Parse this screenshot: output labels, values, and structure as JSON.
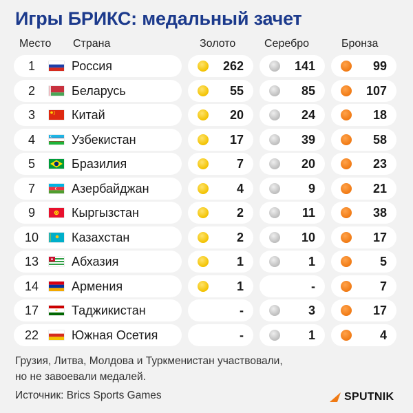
{
  "title": "Игры БРИКС: медальный зачет",
  "headers": {
    "place": "Место",
    "country": "Страна",
    "gold": "Золото",
    "silver": "Серебро",
    "bronze": "Бронза"
  },
  "rows": [
    {
      "place": "1",
      "country": "Россия",
      "gold": "262",
      "silver": "141",
      "bronze": "99",
      "flag": "russia-flag-icon"
    },
    {
      "place": "2",
      "country": "Беларусь",
      "gold": "55",
      "silver": "85",
      "bronze": "107",
      "flag": "belarus-flag-icon"
    },
    {
      "place": "3",
      "country": "Китай",
      "gold": "20",
      "silver": "24",
      "bronze": "18",
      "flag": "china-flag-icon"
    },
    {
      "place": "4",
      "country": "Узбекистан",
      "gold": "17",
      "silver": "39",
      "bronze": "58",
      "flag": "uzbekistan-flag-icon"
    },
    {
      "place": "5",
      "country": "Бразилия",
      "gold": "7",
      "silver": "20",
      "bronze": "23",
      "flag": "brazil-flag-icon"
    },
    {
      "place": "7",
      "country": "Азербайджан",
      "gold": "4",
      "silver": "9",
      "bronze": "21",
      "flag": "azerbaijan-flag-icon"
    },
    {
      "place": "9",
      "country": "Кыргызстан",
      "gold": "2",
      "silver": "11",
      "bronze": "38",
      "flag": "kyrgyzstan-flag-icon"
    },
    {
      "place": "10",
      "country": "Казахстан",
      "gold": "2",
      "silver": "10",
      "bronze": "17",
      "flag": "kazakhstan-flag-icon"
    },
    {
      "place": "13",
      "country": "Абхазия",
      "gold": "1",
      "silver": "1",
      "bronze": "5",
      "flag": "abkhazia-flag-icon"
    },
    {
      "place": "14",
      "country": "Армения",
      "gold": "1",
      "silver": "-",
      "bronze": "7",
      "flag": "armenia-flag-icon"
    },
    {
      "place": "17",
      "country": "Таджикистан",
      "gold": "-",
      "silver": "3",
      "bronze": "17",
      "flag": "tajikistan-flag-icon"
    },
    {
      "place": "22",
      "country": "Южная Осетия",
      "gold": "-",
      "silver": "1",
      "bronze": "4",
      "flag": "south-ossetia-flag-icon"
    }
  ],
  "note_line1": "Грузия, Литва, Молдова и Туркменистан участвовали,",
  "note_line2": "но не завоевали медалей.",
  "source": "Источник: Brics Sports Games",
  "logo": "SPUTNIK",
  "colors": {
    "title": "#1c3a8c",
    "gold": "#f2c200",
    "silver": "#bdbdbd",
    "bronze": "#f07a14",
    "background": "#f2f2f2"
  }
}
